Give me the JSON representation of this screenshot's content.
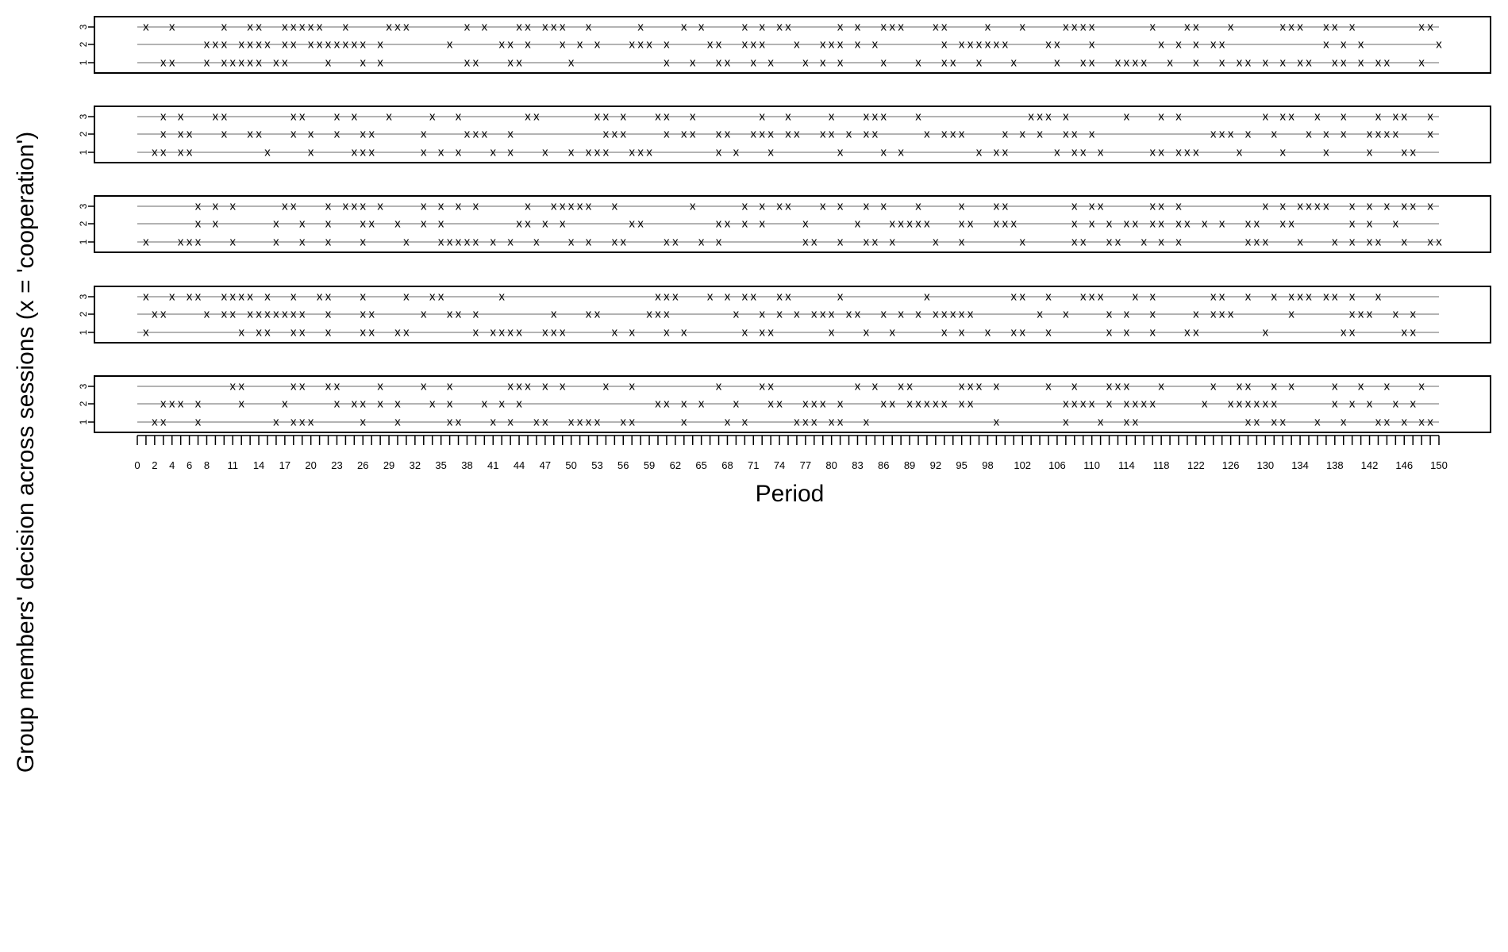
{
  "chart_data": {
    "type": "scatter",
    "title": "",
    "xlabel": "Period",
    "ylabel": "Group members' decision across sessions (x = 'cooperation')",
    "marker": "x",
    "xlim": [
      0,
      150
    ],
    "ylim": [
      1,
      3
    ],
    "x_tick_labels": [
      "0",
      "2",
      "4",
      "6",
      "8",
      "11",
      "14",
      "17",
      "20",
      "23",
      "26",
      "29",
      "32",
      "35",
      "38",
      "41",
      "44",
      "47",
      "50",
      "53",
      "56",
      "59",
      "62",
      "65",
      "68",
      "71",
      "74",
      "77",
      "80",
      "83",
      "86",
      "89",
      "92",
      "95",
      "98",
      "102",
      "106",
      "110",
      "114",
      "118",
      "122",
      "126",
      "130",
      "134",
      "138",
      "142",
      "146",
      "150"
    ],
    "y_tick_labels": [
      "1",
      "2",
      "3"
    ],
    "colors": {
      "axis": "#000000",
      "track_line": "#9a9a9a",
      "marker": "#000000"
    },
    "panels": [
      {
        "members": [
          {
            "member": 3,
            "x": [
              1,
              4,
              10,
              13,
              14,
              17,
              18,
              19,
              20,
              21,
              24,
              29,
              30,
              31,
              38,
              40,
              44,
              45,
              47,
              48,
              49,
              52,
              58,
              63,
              65,
              70,
              72,
              74,
              75,
              81,
              83,
              86,
              87,
              88,
              92,
              93,
              98,
              102,
              107,
              108,
              109,
              110,
              117,
              121,
              122,
              126,
              132,
              133,
              134,
              137,
              138,
              140,
              148,
              149
            ]
          },
          {
            "member": 2,
            "x": [
              8,
              9,
              10,
              12,
              13,
              14,
              15,
              17,
              18,
              20,
              21,
              22,
              23,
              24,
              25,
              26,
              28,
              36,
              42,
              43,
              45,
              49,
              51,
              53,
              57,
              58,
              59,
              61,
              66,
              67,
              70,
              71,
              72,
              76,
              79,
              80,
              81,
              83,
              85,
              93,
              95,
              96,
              97,
              98,
              99,
              100,
              105,
              106,
              110,
              118,
              120,
              122,
              124,
              125,
              137,
              139,
              141,
              150
            ]
          },
          {
            "member": 1,
            "x": [
              3,
              4,
              8,
              10,
              11,
              12,
              13,
              14,
              16,
              17,
              22,
              26,
              28,
              38,
              39,
              43,
              44,
              50,
              61,
              64,
              67,
              68,
              71,
              73,
              77,
              79,
              81,
              86,
              90,
              93,
              94,
              97,
              101,
              106,
              109,
              110,
              113,
              114,
              115,
              116,
              119,
              122,
              125,
              127,
              128,
              130,
              132,
              134,
              135,
              138,
              139,
              141,
              143,
              144,
              148
            ]
          }
        ]
      },
      {
        "members": [
          {
            "member": 3,
            "x": [
              3,
              5,
              9,
              10,
              18,
              19,
              23,
              25,
              29,
              34,
              37,
              45,
              46,
              53,
              54,
              56,
              60,
              61,
              64,
              72,
              75,
              80,
              84,
              85,
              86,
              90,
              103,
              104,
              105,
              107,
              114,
              118,
              120,
              130,
              132,
              133,
              136,
              139,
              143,
              145,
              146,
              149
            ]
          },
          {
            "member": 2,
            "x": [
              3,
              5,
              6,
              10,
              13,
              14,
              18,
              20,
              23,
              26,
              27,
              33,
              38,
              39,
              40,
              43,
              54,
              55,
              56,
              61,
              63,
              64,
              67,
              68,
              71,
              72,
              73,
              75,
              76,
              79,
              80,
              82,
              84,
              85,
              91,
              93,
              94,
              95,
              100,
              102,
              104,
              107,
              108,
              110,
              124,
              125,
              126,
              128,
              131,
              135,
              137,
              139,
              142,
              143,
              144,
              145,
              149
            ]
          },
          {
            "member": 1,
            "x": [
              2,
              3,
              5,
              6,
              15,
              20,
              25,
              26,
              27,
              33,
              35,
              37,
              41,
              43,
              47,
              50,
              52,
              53,
              54,
              57,
              58,
              59,
              67,
              69,
              73,
              81,
              86,
              88,
              97,
              99,
              100,
              106,
              108,
              109,
              111,
              117,
              118,
              120,
              121,
              122,
              127,
              132,
              137,
              142,
              146,
              147
            ]
          }
        ]
      },
      {
        "members": [
          {
            "member": 3,
            "x": [
              7,
              9,
              11,
              17,
              18,
              22,
              24,
              25,
              26,
              28,
              33,
              35,
              37,
              39,
              45,
              48,
              49,
              50,
              51,
              52,
              55,
              64,
              70,
              72,
              74,
              75,
              79,
              81,
              84,
              86,
              90,
              95,
              99,
              100,
              108,
              110,
              111,
              117,
              118,
              120,
              130,
              132,
              134,
              135,
              136,
              137,
              140,
              142,
              144,
              146,
              147,
              149
            ]
          },
          {
            "member": 2,
            "x": [
              7,
              9,
              16,
              19,
              22,
              26,
              27,
              30,
              33,
              35,
              44,
              45,
              47,
              49,
              57,
              58,
              67,
              68,
              70,
              72,
              77,
              83,
              87,
              88,
              89,
              90,
              91,
              95,
              96,
              99,
              100,
              101,
              108,
              110,
              112,
              114,
              115,
              117,
              118,
              120,
              121,
              123,
              125,
              128,
              129,
              132,
              133,
              140,
              142,
              145
            ]
          },
          {
            "member": 1,
            "x": [
              1,
              5,
              6,
              7,
              11,
              16,
              19,
              22,
              26,
              31,
              35,
              36,
              37,
              38,
              39,
              41,
              43,
              46,
              50,
              52,
              55,
              56,
              61,
              62,
              65,
              67,
              77,
              78,
              81,
              84,
              85,
              87,
              92,
              95,
              102,
              108,
              109,
              112,
              113,
              116,
              118,
              120,
              128,
              129,
              130,
              134,
              138,
              140,
              142,
              143,
              146,
              149,
              150
            ]
          }
        ]
      },
      {
        "members": [
          {
            "member": 3,
            "x": [
              1,
              4,
              6,
              7,
              10,
              11,
              12,
              13,
              15,
              18,
              21,
              22,
              26,
              31,
              34,
              35,
              42,
              60,
              61,
              62,
              66,
              68,
              70,
              71,
              74,
              75,
              81,
              91,
              101,
              102,
              105,
              109,
              110,
              111,
              115,
              117,
              124,
              125,
              128,
              131,
              133,
              134,
              135,
              137,
              138,
              140,
              143
            ]
          },
          {
            "member": 2,
            "x": [
              2,
              3,
              8,
              10,
              11,
              13,
              14,
              15,
              16,
              17,
              18,
              19,
              22,
              26,
              27,
              33,
              36,
              37,
              39,
              48,
              52,
              53,
              59,
              60,
              61,
              69,
              72,
              74,
              76,
              78,
              79,
              80,
              82,
              83,
              86,
              88,
              90,
              92,
              93,
              94,
              95,
              96,
              104,
              107,
              112,
              114,
              117,
              122,
              124,
              125,
              126,
              133,
              140,
              141,
              142,
              145,
              147
            ]
          },
          {
            "member": 1,
            "x": [
              1,
              12,
              14,
              15,
              18,
              19,
              22,
              26,
              27,
              30,
              31,
              39,
              41,
              42,
              43,
              44,
              47,
              48,
              49,
              55,
              57,
              61,
              63,
              70,
              72,
              73,
              80,
              84,
              87,
              93,
              95,
              98,
              101,
              102,
              105,
              112,
              114,
              117,
              121,
              122,
              130,
              139,
              140,
              146,
              147
            ]
          }
        ]
      },
      {
        "members": [
          {
            "member": 3,
            "x": [
              11,
              12,
              18,
              19,
              22,
              23,
              28,
              33,
              36,
              43,
              44,
              45,
              47,
              49,
              54,
              57,
              67,
              72,
              73,
              83,
              85,
              88,
              89,
              95,
              96,
              97,
              99,
              105,
              108,
              112,
              113,
              114,
              118,
              124,
              127,
              128,
              131,
              133,
              138,
              141,
              144,
              148
            ]
          },
          {
            "member": 2,
            "x": [
              3,
              4,
              5,
              7,
              12,
              17,
              23,
              25,
              26,
              28,
              30,
              34,
              36,
              40,
              42,
              44,
              60,
              61,
              63,
              65,
              69,
              73,
              74,
              77,
              78,
              79,
              81,
              86,
              87,
              89,
              90,
              91,
              92,
              93,
              95,
              96,
              107,
              108,
              109,
              110,
              112,
              114,
              115,
              116,
              117,
              123,
              126,
              127,
              128,
              129,
              130,
              131,
              138,
              140,
              142,
              145,
              147
            ]
          },
          {
            "member": 1,
            "x": [
              2,
              3,
              7,
              16,
              18,
              19,
              20,
              26,
              30,
              36,
              37,
              41,
              43,
              46,
              47,
              50,
              51,
              52,
              53,
              56,
              57,
              63,
              68,
              70,
              76,
              77,
              78,
              80,
              81,
              84,
              99,
              107,
              111,
              114,
              115,
              128,
              129,
              131,
              132,
              136,
              139,
              143,
              144,
              146,
              148,
              149
            ]
          }
        ]
      }
    ]
  }
}
